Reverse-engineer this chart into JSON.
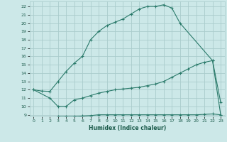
{
  "xlabel": "Humidex (Indice chaleur)",
  "bg_color": "#cce8e8",
  "grid_color": "#aacccc",
  "line_color": "#2a7a6a",
  "xlim": [
    -0.5,
    23.5
  ],
  "ylim": [
    8.8,
    22.6
  ],
  "xticks": [
    0,
    1,
    2,
    3,
    4,
    5,
    6,
    7,
    8,
    9,
    10,
    11,
    12,
    13,
    14,
    15,
    16,
    17,
    18,
    19,
    20,
    21,
    22,
    23
  ],
  "yticks": [
    9,
    10,
    11,
    12,
    13,
    14,
    15,
    16,
    17,
    18,
    19,
    20,
    21,
    22
  ],
  "curve1_x": [
    0,
    1,
    2,
    3,
    4,
    5,
    6,
    7,
    8,
    9,
    10,
    11,
    12,
    13,
    14,
    15,
    16,
    17,
    18,
    22,
    23
  ],
  "curve1_y": [
    12.0,
    11.85,
    11.8,
    13.0,
    14.2,
    15.2,
    16.0,
    18.0,
    19.0,
    19.7,
    20.1,
    20.5,
    21.1,
    21.7,
    22.0,
    22.0,
    22.2,
    21.8,
    20.0,
    15.5,
    9.0
  ],
  "curve2_x": [
    0,
    2,
    3,
    4,
    5,
    6,
    7,
    8,
    9,
    10,
    11,
    12,
    13,
    14,
    15,
    16,
    17,
    18,
    19,
    20,
    21,
    22,
    23
  ],
  "curve2_y": [
    12.0,
    11.0,
    10.0,
    10.0,
    10.8,
    11.0,
    11.3,
    11.6,
    11.8,
    12.0,
    12.1,
    12.2,
    12.3,
    12.5,
    12.7,
    13.0,
    13.5,
    14.0,
    14.5,
    15.0,
    15.3,
    15.5,
    10.5
  ],
  "curve3_x": [
    3,
    4,
    5,
    6,
    7,
    8,
    9,
    10,
    11,
    12,
    13,
    14,
    15,
    16,
    17,
    18,
    19,
    20,
    21,
    22,
    23
  ],
  "curve3_y": [
    8.8,
    8.8,
    8.8,
    8.85,
    8.9,
    9.0,
    9.0,
    9.0,
    9.0,
    9.0,
    9.0,
    9.0,
    9.0,
    9.0,
    9.0,
    9.0,
    9.0,
    9.0,
    9.05,
    9.1,
    9.0
  ],
  "marker": "+"
}
